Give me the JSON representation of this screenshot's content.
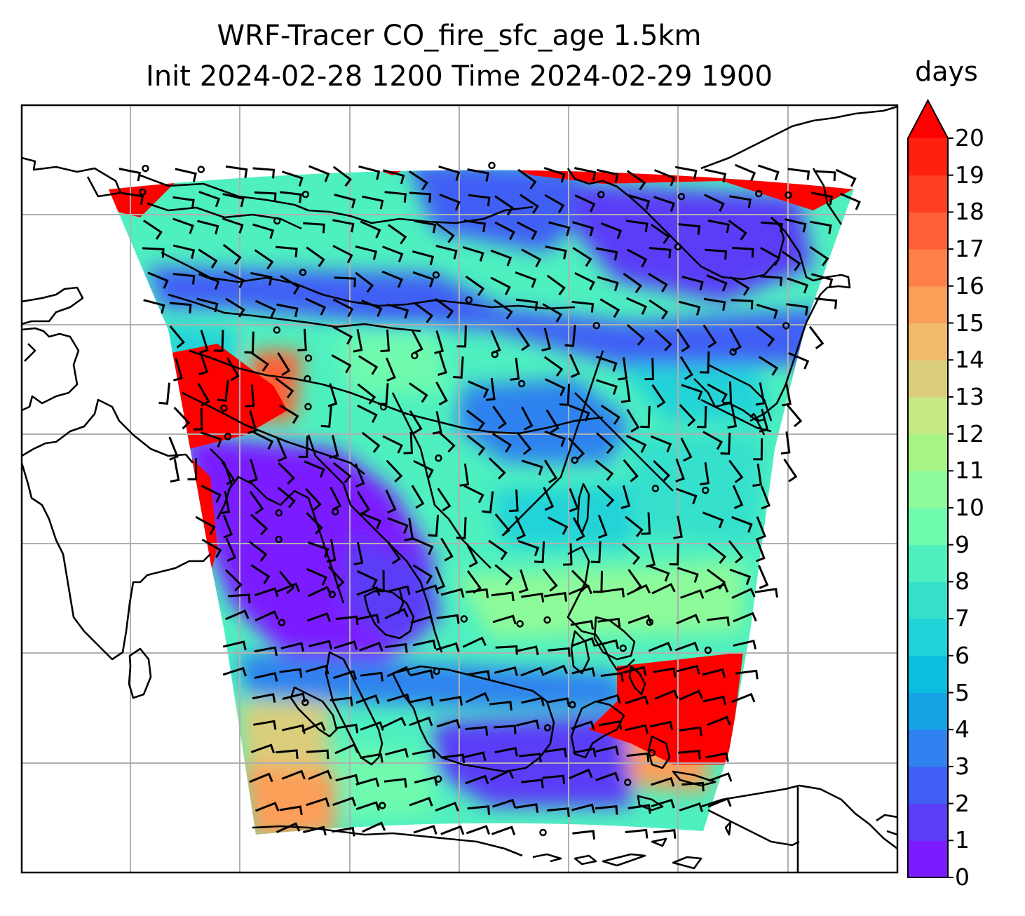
{
  "chart_data": {
    "type": "heatmap",
    "title": "WRF-Tracer CO_fire_sfc_age 1.5km",
    "subtitle": "Init 2024-02-28 1200 Time 2024-02-29 1900",
    "colorbar": {
      "label": "days",
      "min": 0,
      "max": 20,
      "extend": "max",
      "ticks": [
        0,
        1,
        2,
        3,
        4,
        5,
        6,
        7,
        8,
        9,
        10,
        11,
        12,
        13,
        14,
        15,
        16,
        17,
        18,
        19,
        20
      ],
      "colors": [
        "#7a1cff",
        "#5a3ef7",
        "#3f5ff5",
        "#2f82ef",
        "#15a3e6",
        "#0bbde0",
        "#20d3d8",
        "#34e0cc",
        "#4ef0c0",
        "#6ffbae",
        "#8efb9a",
        "#a8f386",
        "#c6e885",
        "#dacd7c",
        "#f0bc6c",
        "#fb9e58",
        "#ff7f48",
        "#ff5f34",
        "#ff4020",
        "#ff200e"
      ],
      "extend_color": "#ff0000"
    },
    "grid": true,
    "overlay": "wind barbs and coastlines"
  }
}
